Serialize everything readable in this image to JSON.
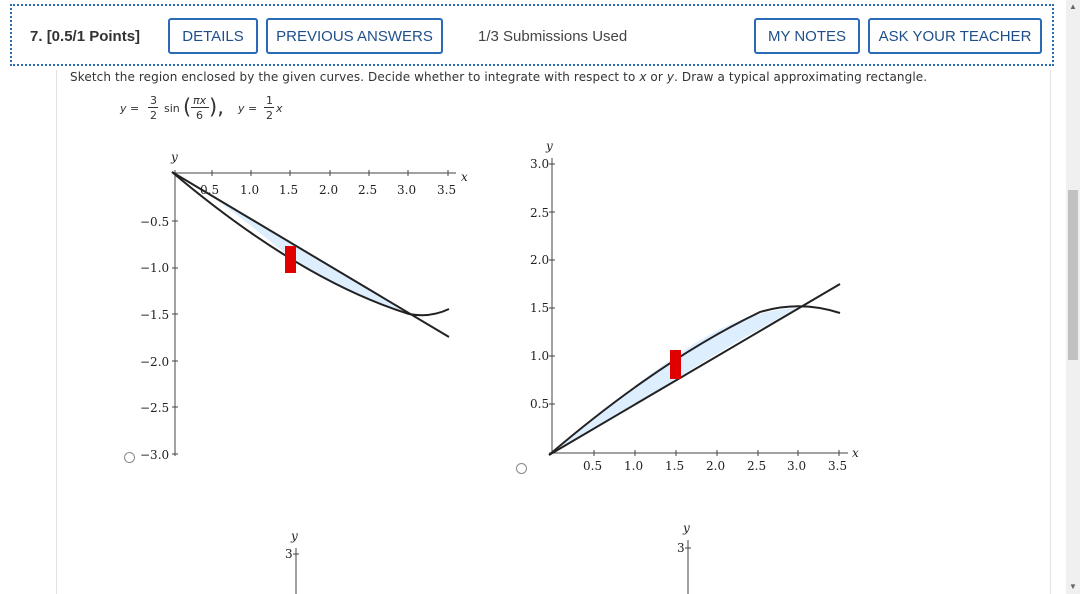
{
  "question": {
    "number_label": "7.",
    "points_label": "[0.5/1 Points]",
    "buttons": {
      "details": "DETAILS",
      "previous_answers": "PREVIOUS ANSWERS",
      "my_notes": "MY NOTES",
      "ask_teacher": "ASK YOUR TEACHER"
    },
    "submissions": "1/3 Submissions Used"
  },
  "prompt": {
    "part1": "Sketch the region enclosed by the given curves. Decide whether to integrate with respect to ",
    "x": "x",
    "or": " or ",
    "y": "y",
    "part2": ". Draw a typical approximating rectangle."
  },
  "formula": {
    "y1": "y =",
    "num1": "3",
    "den1": "2",
    "sin": "sin",
    "lparen": "(",
    "rparen": "),",
    "num2": "πx",
    "den2": "6",
    "y2": "y =",
    "num3": "1",
    "den3": "2",
    "x": "x"
  },
  "graphs": [
    {
      "y_label": "y",
      "x_label": "x",
      "x_ticks": [
        "0.5",
        "1.0",
        "1.5",
        "2.0",
        "2.5",
        "3.0",
        "3.5"
      ],
      "y_ticks": [
        "−0.5",
        "−1.0",
        "−1.5",
        "−2.0",
        "−2.5",
        "−3.0"
      ]
    },
    {
      "y_label": "y",
      "x_label": "x",
      "x_ticks": [
        "0.5",
        "1.0",
        "1.5",
        "2.0",
        "2.5",
        "3.0",
        "3.5"
      ],
      "y_ticks": [
        "3.0",
        "2.5",
        "2.0",
        "1.5",
        "1.0",
        "0.5"
      ]
    },
    {
      "y_label": "y",
      "y_ticks": [
        "3"
      ]
    },
    {
      "y_label": "y",
      "y_ticks": [
        "3"
      ]
    }
  ],
  "colors": {
    "accent": "#2a6bb8",
    "region_fill": "#ddeeff",
    "rectangle": "#e00000"
  }
}
